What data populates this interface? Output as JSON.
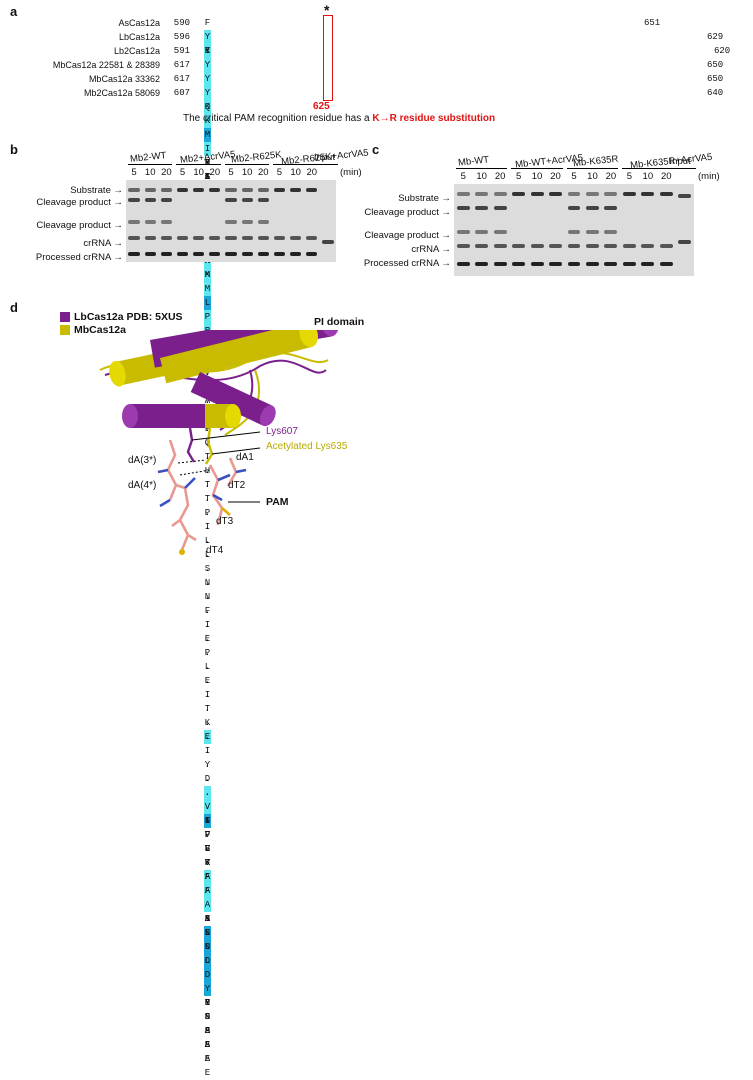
{
  "panel_a": {
    "label": "a",
    "star": "*",
    "position_label": "625",
    "caption_prefix": "The critical PAM recognition residue has a",
    "caption_highlight": "K→R residue substitution",
    "rows": [
      {
        "name": "AsCas12a",
        "start": "590",
        "end": "651",
        "seq": "FDKMYYDYFPDAAKMIPKCSTQLKAVTAHFQTHTTPILLSNNFIEPLEITKEIYDLNNPEKE",
        "hl": [
          [
            2,
            "h1"
          ],
          [
            3,
            "h2"
          ],
          [
            6,
            "h1"
          ],
          [
            14,
            "h1"
          ],
          [
            15,
            "h2"
          ],
          [
            16,
            "h1"
          ],
          [
            17,
            "h1"
          ],
          [
            51,
            "h1"
          ],
          [
            56,
            "h2"
          ],
          [
            57,
            "h2"
          ]
        ]
      },
      {
        "name": "LbCas12a",
        "start": "596",
        "end": "629",
        "seq": "YEKINYKLLPGPNKMLPK.....................................VFFSKKWMAYYNPSED",
        "hl": [
          [
            0,
            "h1"
          ],
          [
            2,
            "h1"
          ],
          [
            14,
            "h1"
          ],
          [
            15,
            "h2"
          ],
          [
            16,
            "h1"
          ],
          [
            17,
            "h1"
          ],
          [
            54,
            "h1"
          ],
          [
            55,
            "h1"
          ],
          [
            64,
            "h2"
          ],
          [
            65,
            "h2"
          ]
        ]
      },
      {
        "name": "Lb2Cas12a",
        "start": "591",
        "end": "620",
        "seq": "YRKMEYKLLTKVSANLPR.....................................IFLK.....DKYNPSEE",
        "hl": [
          [
            2,
            "h1"
          ],
          [
            3,
            "h2"
          ],
          [
            16,
            "h1"
          ],
          [
            17,
            "h1"
          ],
          [
            63,
            "h2"
          ],
          [
            64,
            "h2"
          ]
        ]
      },
      {
        "name": "MbCas12a 22581 & 28389",
        "start": "617",
        "end": "650",
        "seq": "YQKMIYKLLPGPNKMLPR.....................................VFFAKSNLDYYNPSAE",
        "hl": [
          [
            0,
            "h1"
          ],
          [
            2,
            "h1"
          ],
          [
            3,
            "h2"
          ],
          [
            4,
            "h1"
          ],
          [
            14,
            "h1"
          ],
          [
            15,
            "h2"
          ],
          [
            16,
            "h1"
          ],
          [
            17,
            "h1"
          ],
          [
            58,
            "h1"
          ],
          [
            63,
            "h2"
          ],
          [
            64,
            "h2"
          ]
        ]
      },
      {
        "name": "MbCas12a 33362",
        "start": "617",
        "end": "650",
        "seq": "YQKMIYKLLPGPNKMLPR.....................................VFFAKSNLDYYNPSAE",
        "hl": [
          [
            0,
            "h1"
          ],
          [
            2,
            "h1"
          ],
          [
            3,
            "h2"
          ],
          [
            4,
            "h1"
          ],
          [
            14,
            "h1"
          ],
          [
            15,
            "h2"
          ],
          [
            16,
            "h1"
          ],
          [
            17,
            "h1"
          ],
          [
            58,
            "h1"
          ],
          [
            63,
            "h2"
          ],
          [
            64,
            "h2"
          ]
        ]
      },
      {
        "name": "Mb2Cas12a 58069",
        "start": "607",
        "end": "640",
        "seq": "YQKMIYKLLPGPNKMLPR.....................................VFFAKSNLDYYNPSAE",
        "hl": [
          [
            0,
            "h1"
          ],
          [
            2,
            "h1"
          ],
          [
            3,
            "h2"
          ],
          [
            4,
            "h1"
          ],
          [
            14,
            "h1"
          ],
          [
            15,
            "h2"
          ],
          [
            16,
            "h1"
          ],
          [
            17,
            "h1"
          ],
          [
            58,
            "h1"
          ],
          [
            63,
            "h2"
          ],
          [
            64,
            "h2"
          ]
        ]
      }
    ]
  },
  "panel_b": {
    "label": "b",
    "groups": [
      "Mb2-WT",
      "Mb2+AcrVA5",
      "Mb2-R625K",
      "Mb2-R625K+AcrVA5"
    ],
    "input_label": "Input",
    "time_points": [
      "5",
      "10",
      "20"
    ],
    "time_unit": "(min)",
    "band_labels": [
      "Substrate",
      "Cleavage product",
      "Cleavage product",
      "crRNA",
      "Processed crRNA"
    ]
  },
  "panel_c": {
    "label": "c",
    "groups": [
      "Mb-WT",
      "Mb-WT+AcrVA5",
      "Mb-K635R",
      "Mb-K635R+AcrVA5"
    ],
    "input_label": "Input",
    "time_points": [
      "5",
      "10",
      "20"
    ],
    "time_unit": "(min)",
    "band_labels": [
      "Substrate",
      "Cleavage product",
      "Cleavage product",
      "crRNA",
      "Processed crRNA"
    ]
  },
  "panel_d": {
    "label": "d",
    "legend": [
      {
        "name": "LbCas12a PDB: 5XUS",
        "color": "#7a1f8c"
      },
      {
        "name": "MbCas12a",
        "color": "#c9bc00"
      }
    ],
    "domain_label": "PI domain",
    "residue_lb": "Lys607",
    "residue_mb": "Acetylated Lys635",
    "pam_label": "PAM",
    "nucleotides": [
      "dA(3*)",
      "dA(4*)",
      "dA1",
      "dT2",
      "dT3",
      "dT4"
    ]
  }
}
